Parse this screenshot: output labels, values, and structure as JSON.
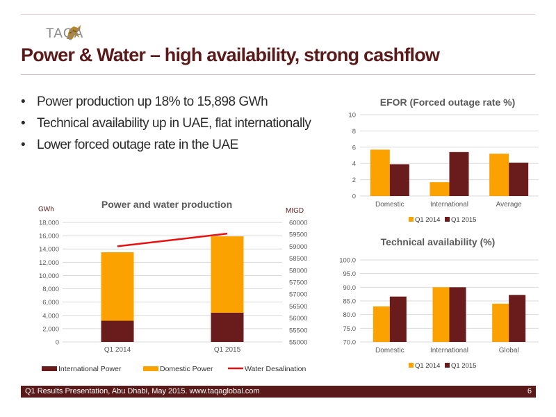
{
  "header": {
    "logo_text": "TAQA"
  },
  "page_title": "Power & Water – high availability, strong cashflow",
  "bullets": [
    "Power production up 18% to 15,898 GWh",
    "Technical availability up in UAE, flat internationally",
    "Lower forced outage rate in the UAE"
  ],
  "colors": {
    "dark": "#6a1b1b",
    "orange": "#fba200",
    "red": "#e81010",
    "footer": "#5b1a1a"
  },
  "chart_data": [
    {
      "type": "bar",
      "title": "Power and water production",
      "y_left_label": "GWh",
      "y_right_label": "MIGD",
      "stacked": true,
      "categories": [
        "Q1  2014",
        "Q1 2015"
      ],
      "series": [
        {
          "name": "International Power",
          "values": [
            3200,
            4400
          ],
          "axis": "left",
          "color": "#6a1b1b"
        },
        {
          "name": "Domestic Power",
          "values": [
            10300,
            11500
          ],
          "axis": "left",
          "color": "#fba200"
        },
        {
          "name": "Water Desalination",
          "values": [
            59000,
            59530
          ],
          "axis": "right",
          "type": "line",
          "color": "#e81010"
        }
      ],
      "ylim_left": [
        0,
        18000
      ],
      "yticks_left": [
        "0",
        "2,000",
        "4,000",
        "6,000",
        "8,000",
        "10,000",
        "12,000",
        "14,000",
        "16,000",
        "18,000"
      ],
      "ylim_right": [
        55000,
        60000
      ],
      "yticks_right": [
        "55000",
        "55500",
        "56000",
        "56500",
        "57000",
        "57500",
        "58000",
        "58500",
        "59000",
        "59500",
        "60000"
      ],
      "grid": true,
      "legend": "bottom"
    },
    {
      "type": "bar",
      "title": "EFOR (Forced outage rate %)",
      "categories": [
        "Domestic",
        "International",
        "Average"
      ],
      "series": [
        {
          "name": "Q1 2014",
          "values": [
            5.7,
            1.7,
            5.2
          ],
          "color": "#fba200"
        },
        {
          "name": "Q1 2015",
          "values": [
            3.9,
            5.4,
            4.1
          ],
          "color": "#6a1b1b"
        }
      ],
      "ylim": [
        0,
        10
      ],
      "yticks": [
        "0",
        "2",
        "4",
        "6",
        "8",
        "10"
      ],
      "grid": true,
      "legend": "bottom"
    },
    {
      "type": "bar",
      "title": "Technical availability (%)",
      "categories": [
        "Domestic",
        "International",
        "Global"
      ],
      "series": [
        {
          "name": "Q1 2014",
          "values": [
            83.0,
            90.0,
            84.0
          ],
          "color": "#fba200"
        },
        {
          "name": "Q1 2015",
          "values": [
            86.6,
            90.0,
            87.2
          ],
          "color": "#6a1b1b"
        }
      ],
      "ylim": [
        70,
        100
      ],
      "yticks": [
        "70.0",
        "75.0",
        "80.0",
        "85.0",
        "90.0",
        "95.0",
        "100.0"
      ],
      "grid": true,
      "legend": "bottom"
    }
  ],
  "footer": {
    "text": "Q1 Results Presentation, Abu Dhabi, May 2015. www.taqaglobal.com",
    "page": "6"
  }
}
